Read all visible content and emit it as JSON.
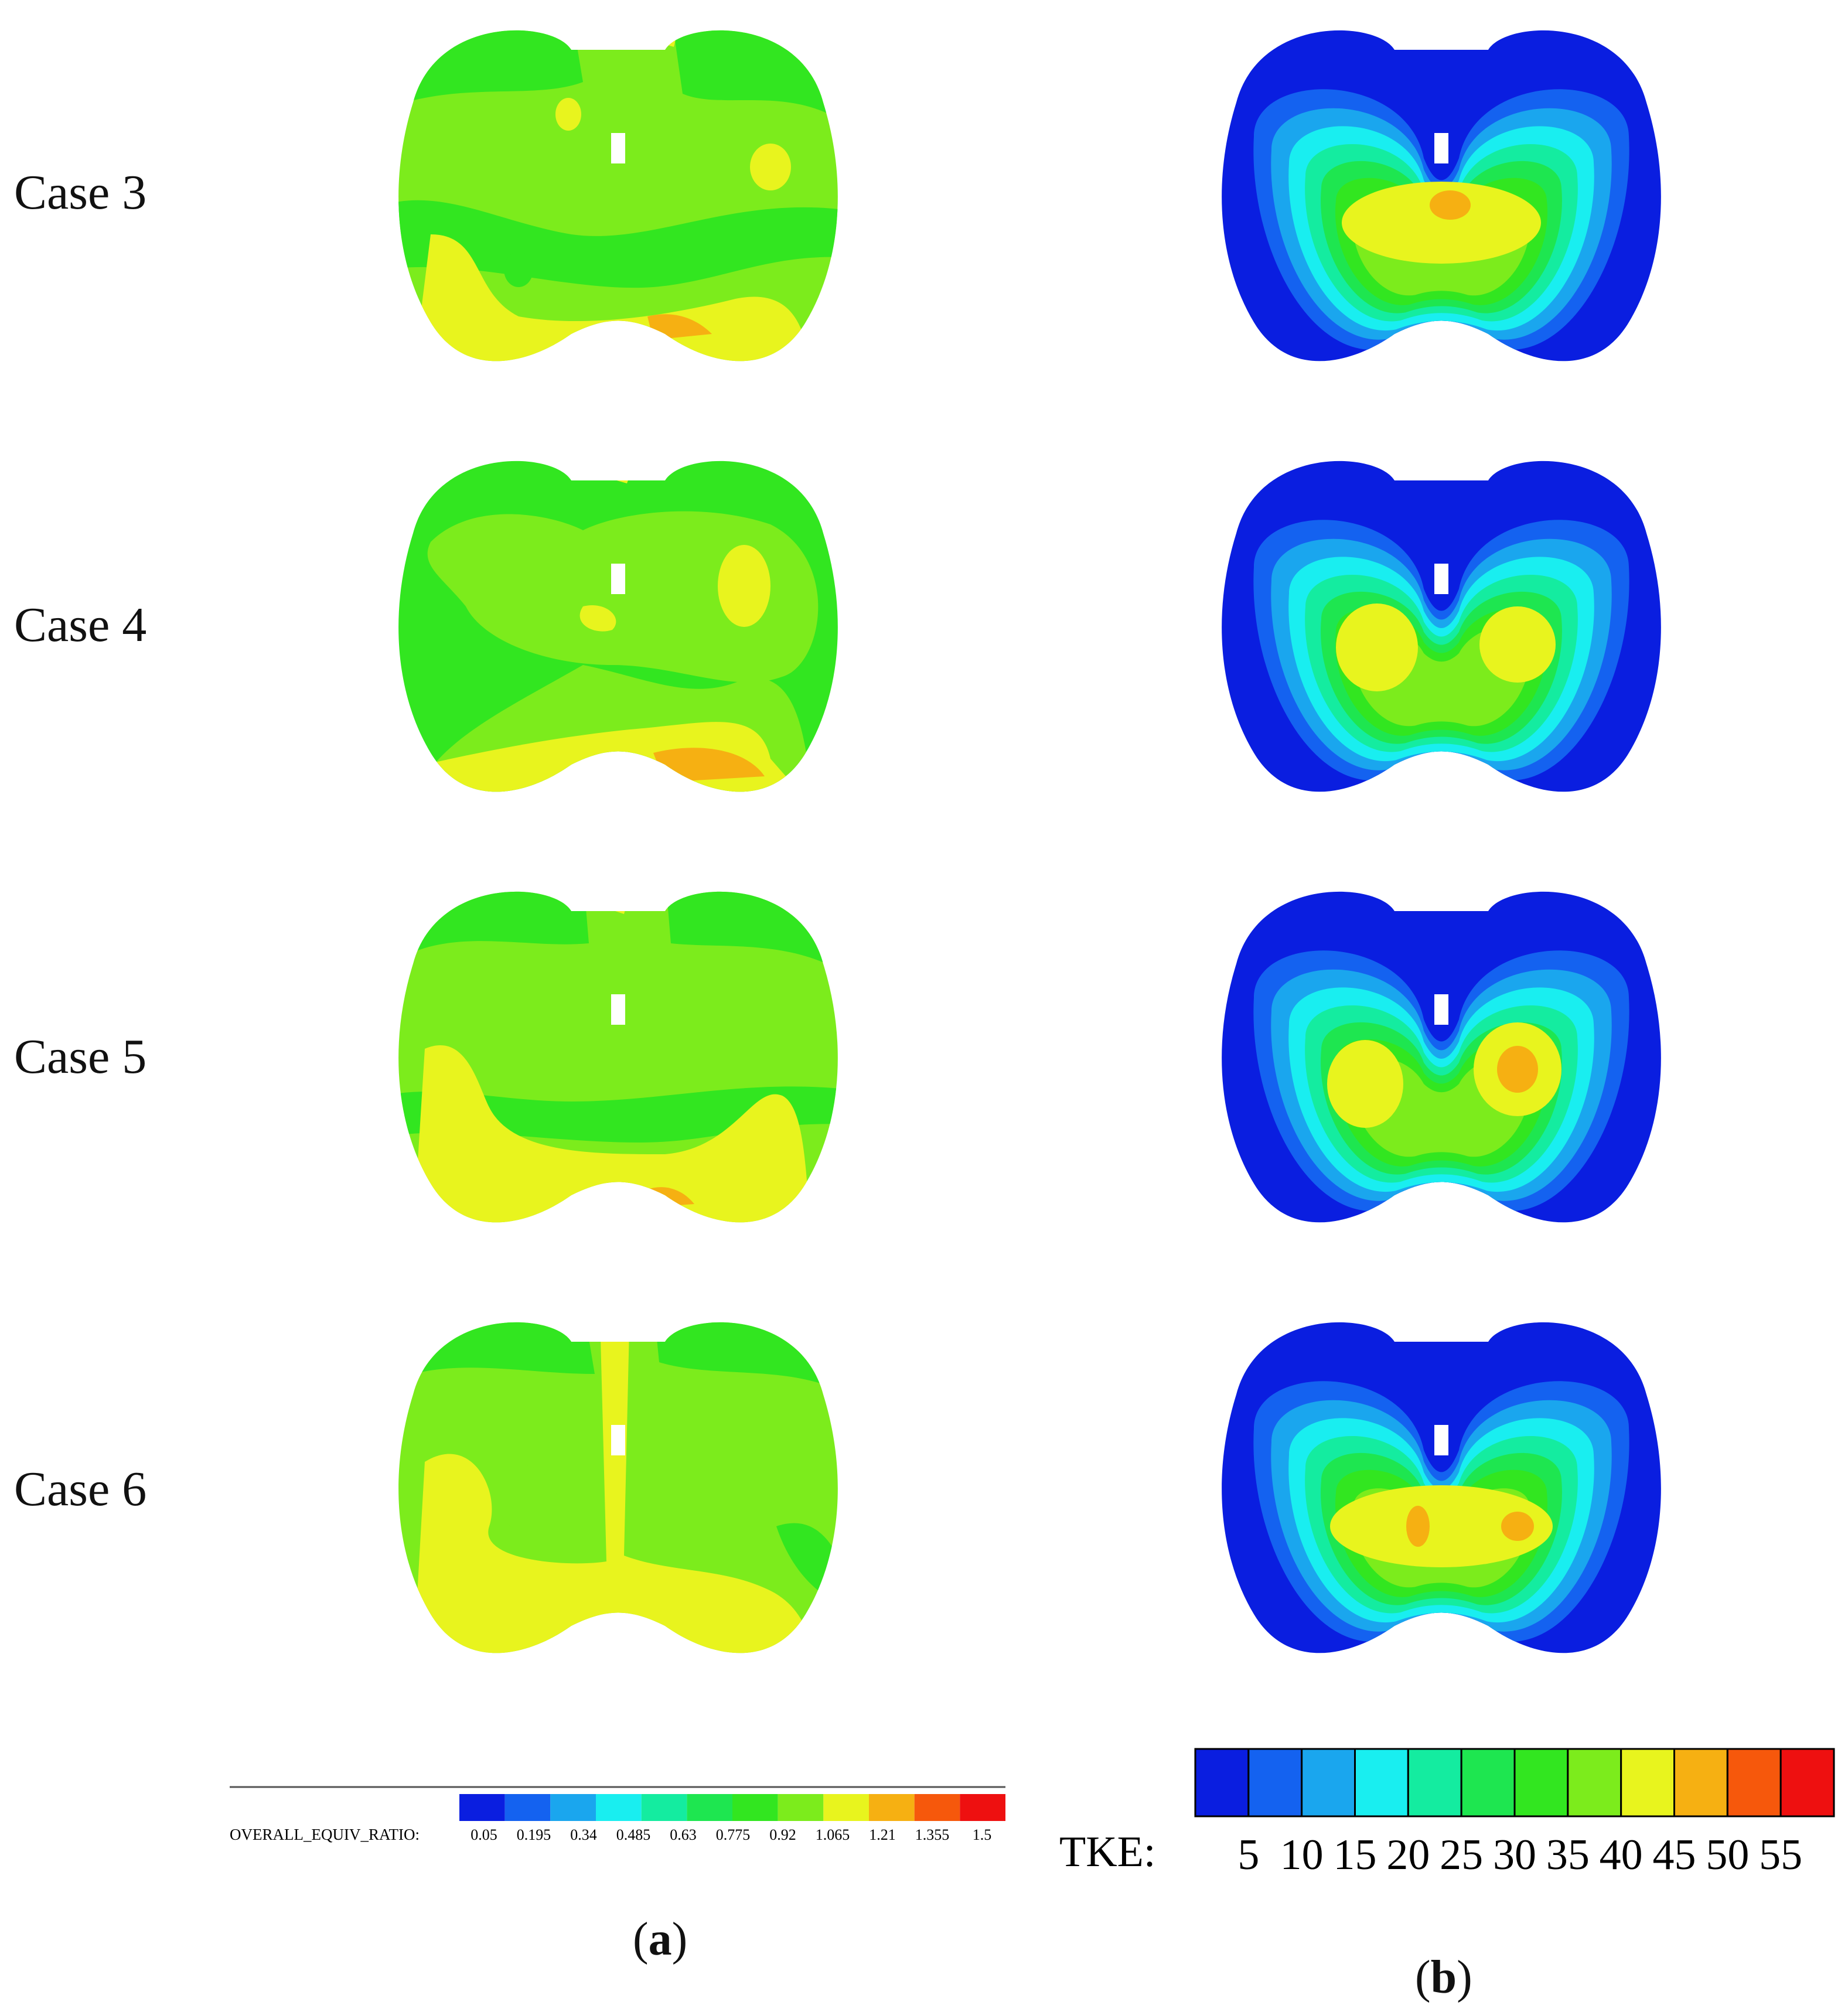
{
  "cases": [
    "Case 3",
    "Case 4",
    "Case 5",
    "Case 6"
  ],
  "colorbar_a": {
    "title": "OVERALL_EQUIV_RATIO:",
    "ticks": [
      "0.05",
      "0.195",
      "0.34",
      "0.485",
      "0.63",
      "0.775",
      "0.92",
      "1.065",
      "1.21",
      "1.355",
      "1.5"
    ],
    "colors": [
      "#0a1ee0",
      "#1462f0",
      "#1aa6ee",
      "#19eef0",
      "#14eca0",
      "#1ee650",
      "#32e620",
      "#7cec1c",
      "#e8f41e",
      "#f6b012",
      "#f6580c",
      "#ee1010"
    ]
  },
  "colorbar_b": {
    "title": "TKE:",
    "ticks": [
      "5",
      "10",
      "15",
      "20",
      "25",
      "30",
      "35",
      "40",
      "45",
      "50",
      "55"
    ],
    "colors": [
      "#0a1ee0",
      "#1462f0",
      "#1aa6ee",
      "#19eef0",
      "#14eca0",
      "#1ee650",
      "#32e620",
      "#7cec1c",
      "#e8f41e",
      "#f6b012",
      "#f6580c",
      "#ee1010"
    ]
  },
  "panel_a": {
    "open": "(",
    "letter": "a",
    "close": ")"
  },
  "panel_b": {
    "open": "(",
    "letter": "b",
    "close": ")"
  },
  "palette": {
    "eq_green": "#7cec1c",
    "eq_dark": "#32e620",
    "eq_yellow": "#e8f41e",
    "eq_orange": "#f6b012",
    "tke_blue": "#0a1ee0",
    "tke_b2": "#1462f0",
    "tke_b3": "#1aa6ee",
    "tke_cyan": "#19eef0",
    "tke_aqua": "#14eca0",
    "tke_g1": "#1ee650",
    "tke_g2": "#32e620",
    "tke_lime": "#7cec1c",
    "tke_yellow": "#e8f41e",
    "tke_orange": "#f6b012"
  }
}
